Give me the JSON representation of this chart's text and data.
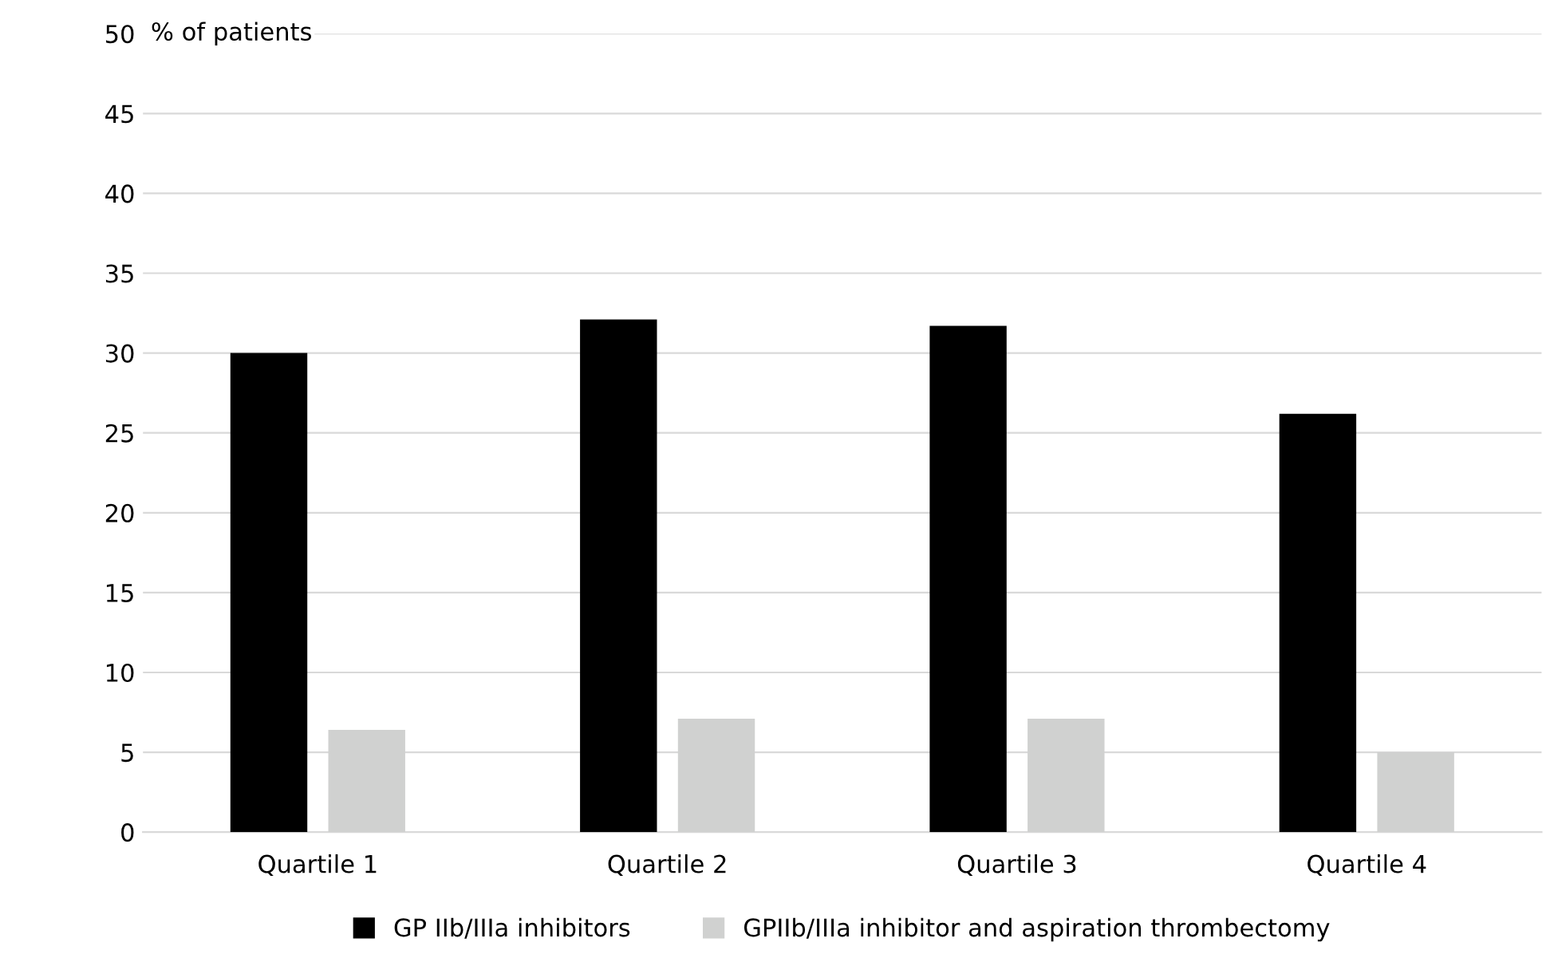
{
  "chart_data": {
    "type": "bar",
    "ylabel": "% of patients",
    "categories": [
      "Quartile 1",
      "Quartile 2",
      "Quartile 3",
      "Quartile 4"
    ],
    "series": [
      {
        "name": "GP IIb/IIIa inhibitors",
        "color": "#000000",
        "values": [
          30.0,
          32.1,
          31.7,
          26.2
        ]
      },
      {
        "name": "GPIIb/IIIa inhibitor and aspiration thrombectomy",
        "color": "#d0d1d0",
        "values": [
          6.4,
          7.1,
          7.1,
          5.0
        ]
      }
    ],
    "ylim": [
      0,
      50
    ],
    "yticks": [
      0,
      5,
      10,
      15,
      20,
      25,
      30,
      35,
      40,
      45,
      50
    ],
    "grid": "y",
    "legend": "bottom"
  }
}
